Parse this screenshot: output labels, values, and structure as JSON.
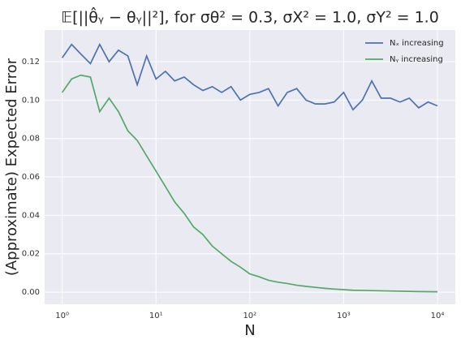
{
  "chart_data": {
    "type": "line",
    "title": "𝔼[||θ̂ᵧ − θᵧ||²], for σθ² = 0.3, σX² = 1.0, σY² = 1.0",
    "x_label": "N",
    "y_label": "(Approximate) Expected Error",
    "xscale": "log",
    "xlim": [
      0.65,
      15500
    ],
    "ylim": [
      -0.0063,
      0.1365
    ],
    "xticks": [
      {
        "value": 1,
        "label": "10⁰"
      },
      {
        "value": 10,
        "label": "10¹"
      },
      {
        "value": 100,
        "label": "10²"
      },
      {
        "value": 1000,
        "label": "10³"
      },
      {
        "value": 10000,
        "label": "10⁴"
      }
    ],
    "yticks": [
      {
        "value": 0,
        "label": "0.00"
      },
      {
        "value": 0.02,
        "label": "0.02"
      },
      {
        "value": 0.04,
        "label": "0.04"
      },
      {
        "value": 0.06,
        "label": "0.06"
      },
      {
        "value": 0.08,
        "label": "0.08"
      },
      {
        "value": 0.1,
        "label": "0.10"
      },
      {
        "value": 0.12,
        "label": "0.12"
      }
    ],
    "grid": true,
    "legend": "upper right",
    "x": [
      1,
      1.26,
      1.58,
      2.0,
      2.51,
      3.16,
      3.98,
      5.01,
      6.31,
      7.94,
      10,
      12.6,
      15.8,
      20.0,
      25.1,
      31.6,
      39.8,
      50.1,
      63.1,
      79.4,
      100,
      126,
      158,
      200,
      251,
      316,
      398,
      501,
      631,
      794,
      1000,
      1259,
      1585,
      1995,
      2512,
      3162,
      3981,
      5012,
      6310,
      7943,
      10000
    ],
    "series": [
      {
        "name": "Nₓ increasing",
        "color": "#4c72b0",
        "values": [
          0.122,
          0.129,
          0.124,
          0.119,
          0.129,
          0.12,
          0.126,
          0.123,
          0.108,
          0.123,
          0.111,
          0.115,
          0.11,
          0.112,
          0.108,
          0.105,
          0.107,
          0.104,
          0.107,
          0.1,
          0.103,
          0.104,
          0.106,
          0.097,
          0.104,
          0.106,
          0.1,
          0.098,
          0.098,
          0.099,
          0.104,
          0.095,
          0.1,
          0.11,
          0.101,
          0.101,
          0.099,
          0.101,
          0.096,
          0.099,
          0.097
        ]
      },
      {
        "name": "Nᵧ increasing",
        "color": "#55a868",
        "values": [
          0.104,
          0.111,
          0.113,
          0.112,
          0.094,
          0.101,
          0.094,
          0.084,
          0.079,
          0.071,
          0.063,
          0.055,
          0.047,
          0.041,
          0.034,
          0.03,
          0.024,
          0.02,
          0.016,
          0.013,
          0.0095,
          0.008,
          0.0062,
          0.0052,
          0.0045,
          0.0036,
          0.003,
          0.0025,
          0.002,
          0.0016,
          0.0013,
          0.001,
          0.0009,
          0.0008,
          0.0007,
          0.0006,
          0.0005,
          0.0004,
          0.0003,
          0.00025,
          0.0002
        ]
      }
    ]
  }
}
